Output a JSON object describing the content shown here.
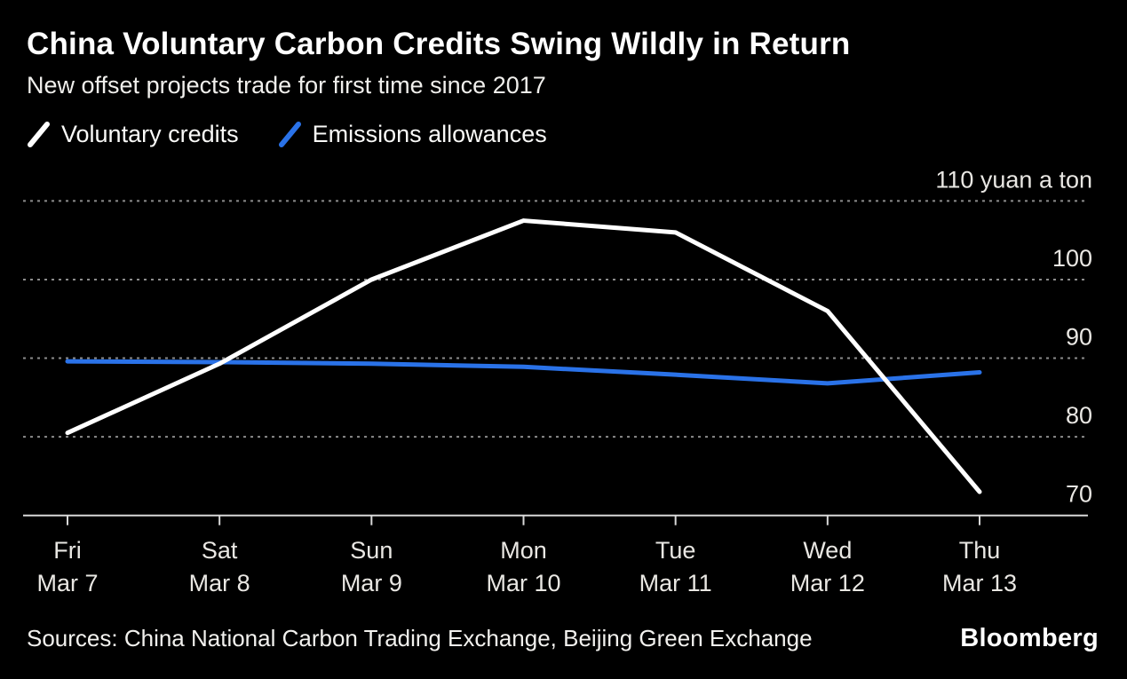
{
  "chart_data": {
    "type": "line",
    "title": "China Voluntary Carbon Credits Swing Wildly in Return",
    "subtitle": "New offset projects trade for first time since 2017",
    "categories": [
      "Fri Mar 7",
      "Sat Mar 8",
      "Sun Mar 9",
      "Mon Mar 10",
      "Tue Mar 11",
      "Wed Mar 12",
      "Thu Mar 13"
    ],
    "x_tick_lines": [
      [
        "Fri",
        "Mar 7"
      ],
      [
        "Sat",
        "Mar 8"
      ],
      [
        "Sun",
        "Mar 9"
      ],
      [
        "Mon",
        "Mar 10"
      ],
      [
        "Tue",
        "Mar 11"
      ],
      [
        "Wed",
        "Mar 12"
      ],
      [
        "Thu",
        "Mar 13"
      ]
    ],
    "series": [
      {
        "name": "Voluntary credits",
        "color": "#ffffff",
        "values": [
          80.5,
          89.3,
          100,
          107.5,
          106,
          96,
          73
        ]
      },
      {
        "name": "Emissions allowances",
        "color": "#2a72e8",
        "values": [
          89.6,
          89.5,
          89.3,
          88.9,
          87.9,
          86.8,
          88.2
        ]
      }
    ],
    "ylabel_unit": "yuan a ton",
    "ylim": [
      70,
      110
    ],
    "y_ticks": [
      110,
      100,
      90,
      80,
      70
    ],
    "y_tick_labels": [
      "110 yuan a ton",
      "100",
      "90",
      "80",
      "70"
    ],
    "grid": "horizontal dotted",
    "legend_position": "top-left"
  },
  "footer": {
    "sources": "Sources: China National Carbon Trading Exchange, Beijing Green Exchange",
    "brand": "Bloomberg"
  },
  "colors": {
    "background": "#000000",
    "series_white": "#ffffff",
    "series_blue": "#2a72e8",
    "gridline": "#8c8c8c",
    "axis_line": "#d8d8d8",
    "axis_text": "#e9e7e3"
  }
}
